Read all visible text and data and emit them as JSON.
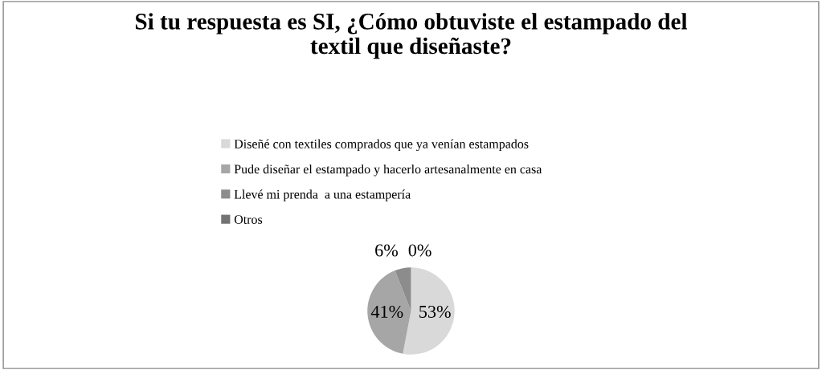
{
  "chart_data": {
    "type": "pie",
    "title": "Si tu respuesta es SI, ¿Cómo obtuviste el estampado del\ntextil que diseñaste?",
    "categories": [
      "Diseñé con textiles comprados que ya venían estampados",
      "Pude diseñar el estampado y hacerlo artesanalmente en casa",
      "Llevé mi prenda  a una estampería",
      "Otros"
    ],
    "values": [
      53,
      41,
      6,
      0
    ],
    "colors": [
      "#d9d9d9",
      "#a6a6a6",
      "#8c8c8c",
      "#737373"
    ],
    "value_labels": [
      "53%",
      "41%",
      "6%",
      "0%"
    ],
    "legend": "top"
  }
}
